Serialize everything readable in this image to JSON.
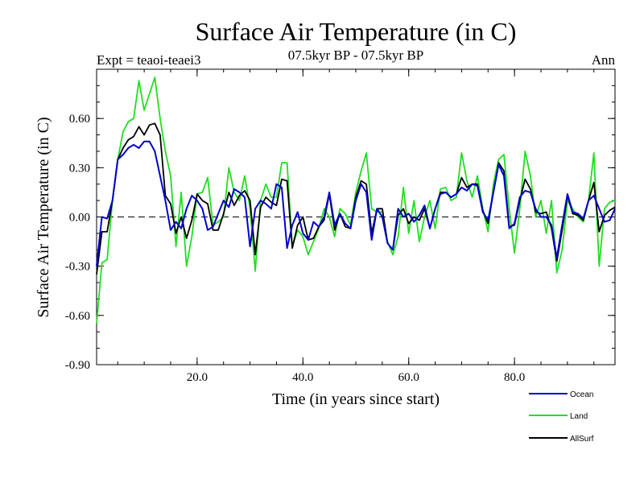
{
  "chart_data": {
    "type": "line",
    "title": "Surface Air Temperature (in C)",
    "subtitle": "07.5kyr BP - 07.5kyr BP",
    "expt_label": "Expt = teaoi-teaei3",
    "period_label": "Ann",
    "xlabel": "Time (in years since start)",
    "ylabel": "Surface Air Temperature (in C)",
    "xlim": [
      1,
      99
    ],
    "ylim": [
      -0.9,
      0.9
    ],
    "x_ticks": [
      20,
      40,
      60,
      80
    ],
    "x_tick_labels": [
      "20.0",
      "40.0",
      "60.0",
      "80.0"
    ],
    "y_ticks": [
      -0.9,
      -0.6,
      -0.3,
      0.0,
      0.3,
      0.6
    ],
    "y_tick_labels": [
      "-0.90",
      "-0.60",
      "-0.30",
      "0.00",
      "0.30",
      "0.60"
    ],
    "zero_line": "dashed",
    "legend_position": "bottom-right, below plot",
    "x": [
      1,
      2,
      3,
      4,
      5,
      6,
      7,
      8,
      9,
      10,
      11,
      12,
      13,
      14,
      15,
      16,
      17,
      18,
      19,
      20,
      21,
      22,
      23,
      24,
      25,
      26,
      27,
      28,
      29,
      30,
      31,
      32,
      33,
      34,
      35,
      36,
      37,
      38,
      39,
      40,
      41,
      42,
      43,
      44,
      45,
      46,
      47,
      48,
      49,
      50,
      51,
      52,
      53,
      54,
      55,
      56,
      57,
      58,
      59,
      60,
      61,
      62,
      63,
      64,
      65,
      66,
      67,
      68,
      69,
      70,
      71,
      72,
      73,
      74,
      75,
      76,
      77,
      78,
      79,
      80,
      81,
      82,
      83,
      84,
      85,
      86,
      87,
      88,
      89,
      90,
      91,
      92,
      93,
      94,
      95,
      96,
      97,
      98,
      99
    ],
    "series": [
      {
        "name": "Ocean",
        "color": "#0000cc",
        "values": [
          -0.3,
          0.0,
          -0.01,
          0.1,
          0.35,
          0.38,
          0.42,
          0.44,
          0.42,
          0.46,
          0.46,
          0.4,
          0.25,
          0.1,
          -0.08,
          -0.03,
          -0.07,
          0.05,
          0.13,
          0.1,
          0.05,
          -0.08,
          -0.06,
          0.02,
          0.1,
          0.06,
          0.17,
          0.15,
          0.12,
          -0.18,
          0.05,
          0.1,
          0.08,
          0.05,
          0.2,
          0.18,
          -0.19,
          -0.05,
          0.03,
          -0.1,
          -0.14,
          -0.03,
          -0.06,
          0.0,
          0.15,
          -0.05,
          0.02,
          -0.04,
          -0.07,
          0.1,
          0.2,
          0.15,
          -0.14,
          0.05,
          0.0,
          -0.16,
          -0.2,
          0.05,
          0.0,
          0.02,
          -0.03,
          0.01,
          0.07,
          -0.07,
          0.05,
          0.14,
          0.15,
          0.12,
          0.14,
          0.18,
          0.16,
          0.2,
          0.19,
          0.03,
          -0.02,
          0.15,
          0.32,
          0.25,
          -0.07,
          -0.04,
          0.12,
          0.16,
          0.15,
          0.05,
          0.0,
          0.0,
          -0.05,
          -0.25,
          -0.05,
          0.14,
          0.03,
          0.02,
          -0.01,
          0.1,
          0.13,
          0.05,
          -0.03,
          -0.02,
          0.05
        ]
      },
      {
        "name": "Land",
        "color": "#22dd22",
        "values": [
          -0.65,
          -0.28,
          -0.26,
          0.1,
          0.35,
          0.52,
          0.58,
          0.6,
          0.83,
          0.65,
          0.75,
          0.85,
          0.6,
          0.4,
          0.25,
          -0.18,
          0.15,
          -0.3,
          -0.12,
          0.14,
          0.15,
          0.24,
          -0.05,
          -0.03,
          0.0,
          0.3,
          0.15,
          0.1,
          0.25,
          0.05,
          -0.33,
          0.1,
          0.2,
          0.12,
          0.12,
          0.33,
          0.33,
          -0.18,
          -0.08,
          -0.12,
          -0.23,
          -0.15,
          -0.07,
          0.05,
          0.0,
          -0.12,
          0.05,
          0.02,
          -0.05,
          0.15,
          0.28,
          0.39,
          0.05,
          0.03,
          0.03,
          -0.15,
          -0.23,
          -0.12,
          0.18,
          -0.1,
          0.1,
          -0.15,
          0.0,
          0.1,
          -0.07,
          0.17,
          0.18,
          0.1,
          0.12,
          0.39,
          0.22,
          0.12,
          0.25,
          0.05,
          -0.09,
          0.2,
          0.35,
          0.38,
          0.05,
          -0.22,
          0.05,
          0.4,
          0.25,
          0.0,
          0.1,
          -0.1,
          0.1,
          -0.34,
          -0.2,
          0.1,
          0.05,
          0.0,
          -0.03,
          0.1,
          0.39,
          -0.3,
          0.05,
          0.09,
          0.1
        ]
      },
      {
        "name": "AllSurf",
        "color": "#000000",
        "values": [
          -0.35,
          -0.09,
          -0.09,
          0.1,
          0.35,
          0.42,
          0.47,
          0.49,
          0.55,
          0.5,
          0.56,
          0.57,
          0.5,
          0.13,
          0.08,
          -0.1,
          0.0,
          -0.13,
          -0.02,
          0.14,
          0.1,
          0.08,
          -0.08,
          -0.08,
          0.02,
          0.15,
          0.07,
          0.13,
          0.16,
          0.1,
          -0.23,
          0.06,
          0.12,
          0.09,
          0.07,
          0.23,
          0.22,
          -0.19,
          -0.05,
          0.0,
          -0.14,
          -0.13,
          -0.06,
          -0.02,
          0.14,
          -0.08,
          0.02,
          -0.06,
          -0.07,
          0.12,
          0.22,
          0.2,
          -0.1,
          0.05,
          0.05,
          -0.16,
          -0.2,
          0.01,
          0.05,
          -0.04,
          0.0,
          -0.02,
          0.05,
          -0.07,
          0.05,
          0.15,
          0.15,
          0.12,
          0.14,
          0.24,
          0.18,
          0.2,
          0.2,
          0.04,
          -0.04,
          0.15,
          0.33,
          0.28,
          -0.06,
          -0.05,
          0.1,
          0.23,
          0.17,
          0.03,
          0.02,
          0.03,
          -0.07,
          -0.27,
          -0.08,
          0.13,
          0.02,
          0.01,
          -0.02,
          0.1,
          0.21,
          -0.09,
          0.01,
          0.04,
          0.06
        ]
      }
    ]
  }
}
